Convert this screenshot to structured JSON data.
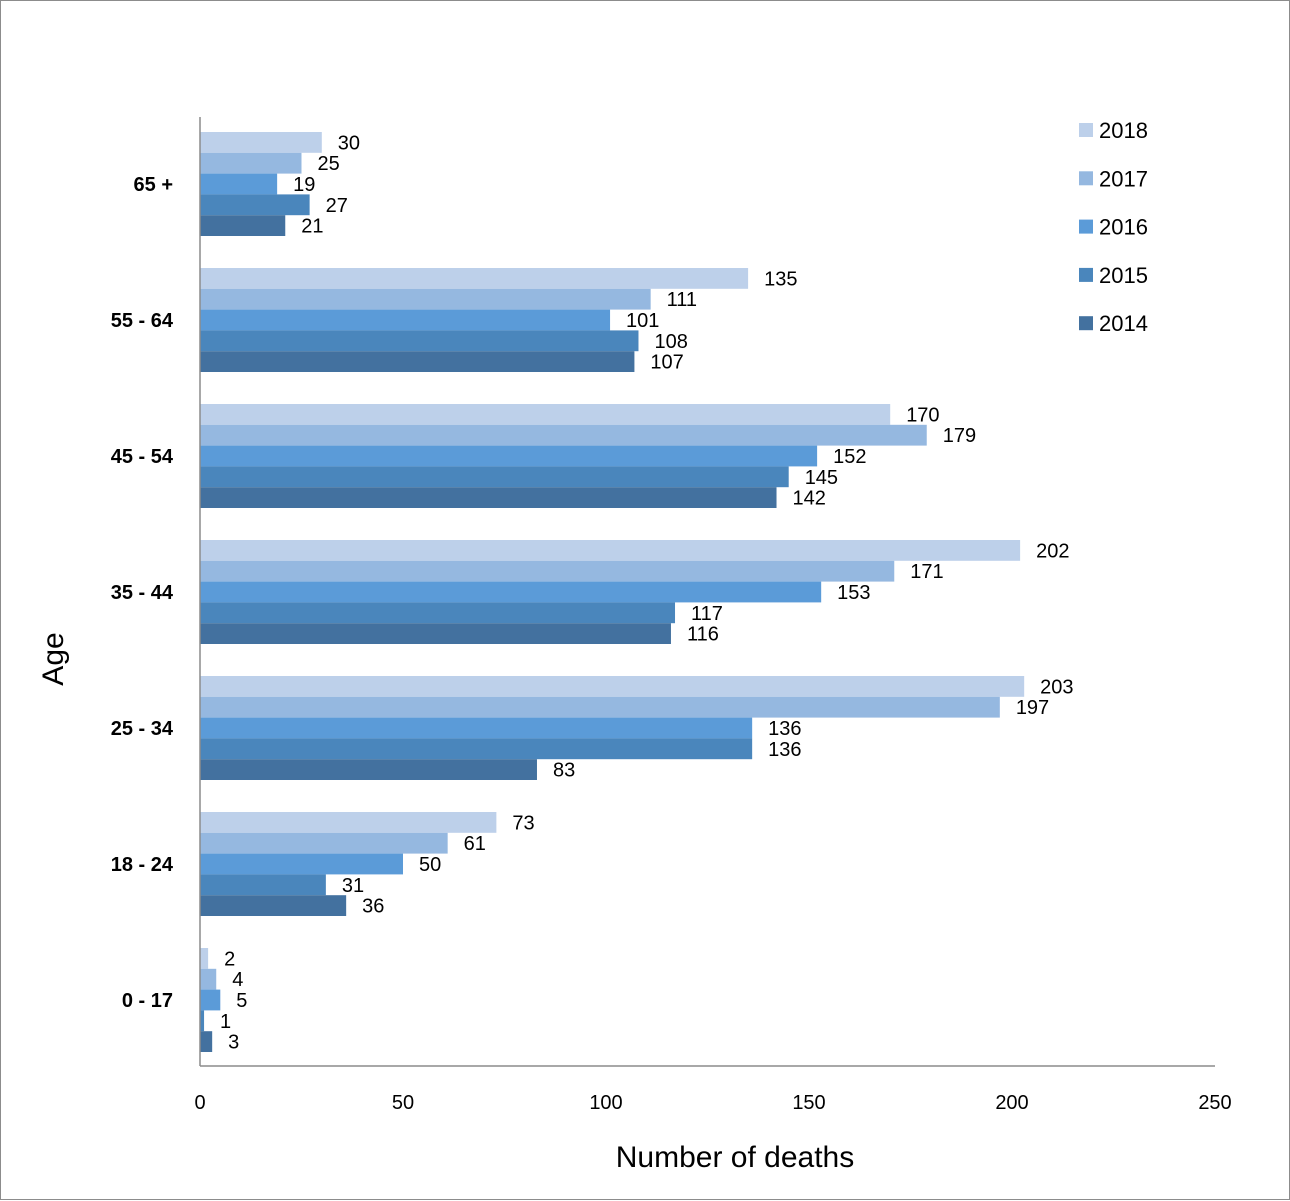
{
  "chart_data": {
    "type": "bar",
    "orientation": "horizontal",
    "categories": [
      "65 +",
      "55 - 64",
      "45 - 54",
      "35  - 44",
      "25 - 34",
      "18 - 24",
      "0  - 17"
    ],
    "series": [
      {
        "name": "2018",
        "color": "#bdd0ea",
        "values": [
          30,
          135,
          170,
          202,
          203,
          73,
          2
        ]
      },
      {
        "name": "2017",
        "color": "#95b8e0",
        "values": [
          25,
          111,
          179,
          171,
          197,
          61,
          4
        ]
      },
      {
        "name": "2016",
        "color": "#5b9bd8",
        "values": [
          19,
          101,
          152,
          153,
          136,
          50,
          5
        ]
      },
      {
        "name": "2015",
        "color": "#4a86bc",
        "values": [
          27,
          108,
          145,
          117,
          136,
          31,
          1
        ]
      },
      {
        "name": "2014",
        "color": "#43719f",
        "values": [
          21,
          107,
          142,
          116,
          83,
          36,
          3
        ]
      }
    ],
    "xlabel": "Number of deaths",
    "ylabel": "Age",
    "xlim": [
      0,
      250
    ],
    "xticks": [
      "0",
      "50",
      "100",
      "150",
      "200",
      "250"
    ],
    "legend_position": "top-right",
    "grid": false
  }
}
